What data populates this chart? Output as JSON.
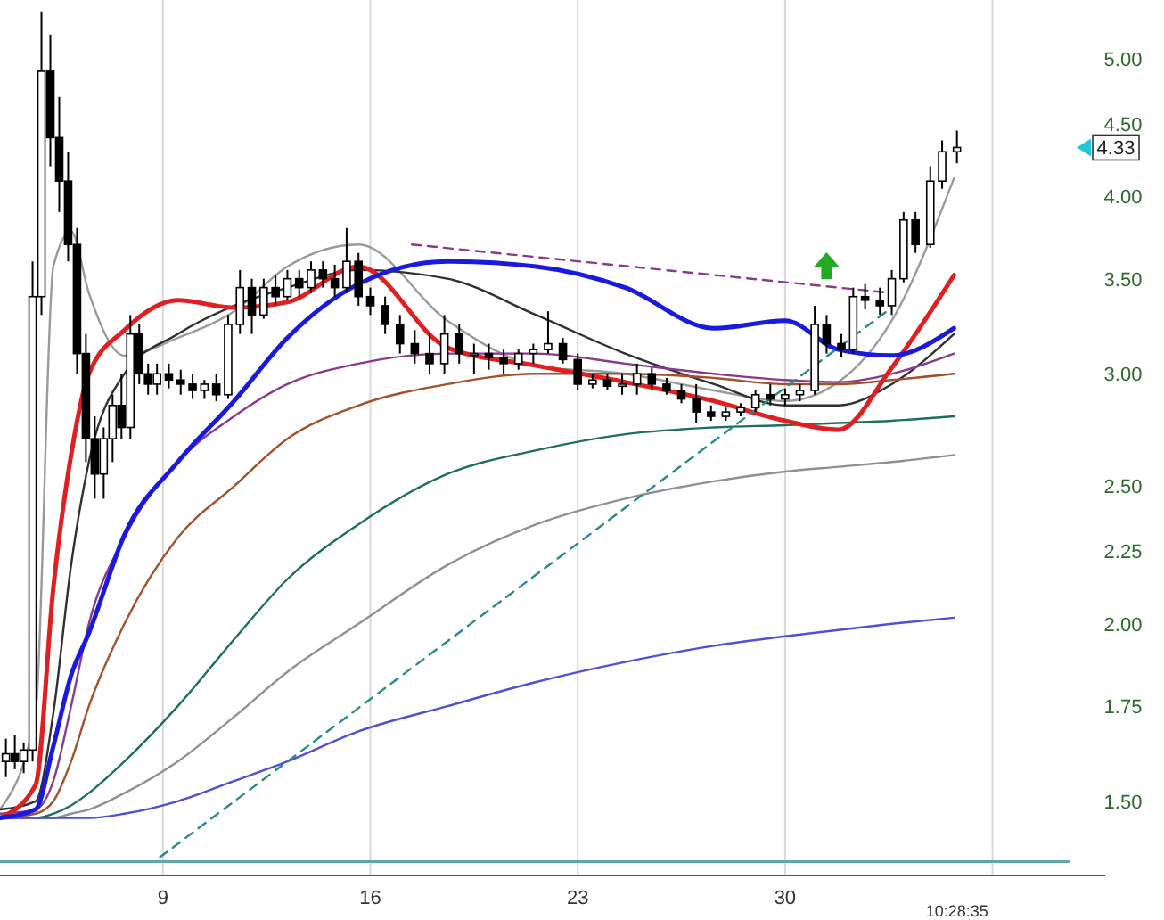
{
  "chart_data": {
    "type": "candlestick",
    "log": true,
    "grid": "x",
    "xlim": [
      3.5,
      39.6
    ],
    "xticks": [
      9,
      16,
      23,
      30,
      {
        "value": 37,
        "label": null
      }
    ],
    "ylim": [
      1.33,
      5.5
    ],
    "yticks": [
      {
        "value": 1.5,
        "label": "1.50"
      },
      {
        "value": 1.75,
        "label": "1.75"
      },
      {
        "value": 2,
        "label": "2.00"
      },
      {
        "value": 2.25,
        "label": "2.25"
      },
      {
        "value": 2.5,
        "label": "2.50"
      },
      {
        "value": 3,
        "label": "3.00"
      },
      {
        "value": 3.5,
        "label": "3.50"
      },
      {
        "value": 4,
        "label": "4.00"
      },
      {
        "value": 4.5,
        "label": "4.50"
      },
      {
        "value": 5,
        "label": "5.00"
      }
    ],
    "x": [
      3.7,
      4.0,
      4.3,
      4.6,
      4.9,
      5.2,
      5.5,
      5.8,
      6.1,
      6.4,
      6.7,
      7.0,
      7.3,
      7.6,
      7.9,
      8.2,
      8.5,
      8.8,
      9.2,
      9.6,
      10.0,
      10.4,
      10.8,
      11.2,
      11.6,
      12.0,
      12.4,
      12.8,
      13.2,
      13.6,
      14.0,
      14.4,
      14.8,
      15.2,
      15.6,
      16.0,
      16.5,
      17.0,
      17.5,
      18.0,
      18.5,
      19.0,
      19.5,
      20.0,
      20.5,
      21.0,
      21.5,
      22.0,
      22.5,
      23.0,
      23.5,
      24.0,
      24.5,
      25.0,
      25.5,
      26.0,
      26.5,
      27.0,
      27.5,
      28.0,
      28.5,
      29.0,
      29.5,
      30.0,
      30.5,
      31.0,
      31.4,
      31.9,
      32.3,
      32.7,
      33.2,
      33.6,
      34.0,
      34.4,
      34.9,
      35.3,
      35.8
    ],
    "ohlc": [
      [
        1.6,
        1.66,
        1.56,
        1.62
      ],
      [
        1.62,
        1.67,
        1.58,
        1.6
      ],
      [
        1.6,
        1.65,
        1.57,
        1.63
      ],
      [
        1.63,
        3.6,
        1.6,
        3.4
      ],
      [
        3.4,
        5.4,
        3.3,
        4.9
      ],
      [
        4.9,
        5.2,
        4.2,
        4.4
      ],
      [
        4.4,
        4.7,
        3.9,
        4.1
      ],
      [
        4.1,
        4.3,
        3.6,
        3.7
      ],
      [
        3.7,
        3.8,
        3.0,
        3.1
      ],
      [
        3.1,
        3.2,
        2.6,
        2.7
      ],
      [
        2.7,
        2.8,
        2.45,
        2.55
      ],
      [
        2.55,
        2.75,
        2.45,
        2.7
      ],
      [
        2.7,
        2.9,
        2.6,
        2.85
      ],
      [
        2.85,
        3.0,
        2.7,
        2.75
      ],
      [
        2.75,
        3.3,
        2.7,
        3.2
      ],
      [
        3.2,
        3.25,
        2.95,
        3.0
      ],
      [
        3.0,
        3.05,
        2.9,
        2.95
      ],
      [
        2.95,
        3.05,
        2.9,
        3.0
      ],
      [
        3.0,
        3.05,
        2.93,
        2.97
      ],
      [
        2.97,
        3.02,
        2.9,
        2.95
      ],
      [
        2.95,
        3.0,
        2.88,
        2.92
      ],
      [
        2.92,
        2.97,
        2.88,
        2.95
      ],
      [
        2.95,
        3.0,
        2.87,
        2.9
      ],
      [
        2.9,
        3.3,
        2.88,
        3.25
      ],
      [
        3.25,
        3.55,
        3.2,
        3.45
      ],
      [
        3.45,
        3.5,
        3.2,
        3.3
      ],
      [
        3.3,
        3.5,
        3.28,
        3.45
      ],
      [
        3.45,
        3.52,
        3.35,
        3.4
      ],
      [
        3.4,
        3.55,
        3.38,
        3.5
      ],
      [
        3.5,
        3.55,
        3.4,
        3.45
      ],
      [
        3.45,
        3.6,
        3.42,
        3.55
      ],
      [
        3.55,
        3.6,
        3.45,
        3.5
      ],
      [
        3.5,
        3.58,
        3.4,
        3.45
      ],
      [
        3.45,
        3.8,
        3.42,
        3.6
      ],
      [
        3.6,
        3.65,
        3.35,
        3.4
      ],
      [
        3.4,
        3.45,
        3.3,
        3.35
      ],
      [
        3.35,
        3.4,
        3.2,
        3.25
      ],
      [
        3.25,
        3.3,
        3.1,
        3.15
      ],
      [
        3.15,
        3.22,
        3.05,
        3.1
      ],
      [
        3.1,
        3.2,
        3.0,
        3.05
      ],
      [
        3.05,
        3.3,
        3.0,
        3.2
      ],
      [
        3.2,
        3.25,
        3.05,
        3.1
      ],
      [
        3.1,
        3.15,
        3.0,
        3.1
      ],
      [
        3.1,
        3.15,
        3.02,
        3.08
      ],
      [
        3.08,
        3.12,
        3.0,
        3.05
      ],
      [
        3.05,
        3.12,
        3.02,
        3.1
      ],
      [
        3.1,
        3.15,
        3.05,
        3.12
      ],
      [
        3.12,
        3.32,
        3.1,
        3.15
      ],
      [
        3.15,
        3.18,
        3.05,
        3.07
      ],
      [
        3.07,
        3.1,
        2.92,
        2.95
      ],
      [
        2.95,
        3.0,
        2.93,
        2.97
      ],
      [
        2.97,
        3.0,
        2.92,
        2.94
      ],
      [
        2.94,
        3.0,
        2.9,
        2.95
      ],
      [
        2.95,
        3.05,
        2.9,
        3.0
      ],
      [
        3.0,
        3.03,
        2.93,
        2.95
      ],
      [
        2.95,
        2.98,
        2.9,
        2.92
      ],
      [
        2.92,
        2.95,
        2.86,
        2.88
      ],
      [
        2.88,
        2.95,
        2.77,
        2.82
      ],
      [
        2.82,
        2.85,
        2.78,
        2.8
      ],
      [
        2.8,
        2.84,
        2.78,
        2.82
      ],
      [
        2.82,
        2.86,
        2.8,
        2.84
      ],
      [
        2.84,
        2.92,
        2.82,
        2.9
      ],
      [
        2.9,
        2.95,
        2.85,
        2.88
      ],
      [
        2.88,
        2.93,
        2.85,
        2.9
      ],
      [
        2.9,
        2.95,
        2.87,
        2.92
      ],
      [
        2.92,
        3.35,
        2.9,
        3.25
      ],
      [
        3.25,
        3.3,
        3.1,
        3.15
      ],
      [
        3.15,
        3.2,
        3.08,
        3.12
      ],
      [
        3.12,
        3.45,
        3.1,
        3.4
      ],
      [
        3.4,
        3.47,
        3.33,
        3.38
      ],
      [
        3.38,
        3.45,
        3.3,
        3.35
      ],
      [
        3.35,
        3.55,
        3.3,
        3.5
      ],
      [
        3.5,
        3.9,
        3.48,
        3.85
      ],
      [
        3.85,
        3.9,
        3.65,
        3.7
      ],
      [
        3.7,
        4.2,
        3.68,
        4.1
      ],
      [
        4.1,
        4.38,
        4.05,
        4.3
      ],
      [
        4.3,
        4.45,
        4.22,
        4.33
      ]
    ],
    "series": [
      {
        "type": "line",
        "color": "#9a9a9a",
        "x": [
          3.5,
          4.7,
          5.3,
          5.9,
          6.5,
          7.7,
          9.5,
          11.4,
          13.2,
          15.6,
          18.6,
          21.6,
          24.6,
          27.6,
          30,
          31.8,
          33.6,
          35.7
        ],
        "values": [
          1.48,
          1.73,
          3.57,
          3.78,
          3.42,
          3.09,
          3.18,
          3.32,
          3.57,
          3.7,
          3.27,
          3.04,
          3.0,
          2.92,
          2.87,
          2.96,
          3.27,
          4.12
        ]
      },
      {
        "type": "line",
        "color": "#303030",
        "x": [
          3.5,
          4.7,
          5.3,
          5.9,
          6.5,
          7.7,
          9.5,
          11.4,
          13.2,
          15.6,
          18.6,
          21.6,
          24.6,
          27.6,
          30,
          31.8,
          33.6,
          35.7
        ],
        "values": [
          1.48,
          1.5,
          1.73,
          2.2,
          2.6,
          3.0,
          3.2,
          3.35,
          3.45,
          3.55,
          3.5,
          3.3,
          3.1,
          2.95,
          2.85,
          2.85,
          2.95,
          3.2
        ]
      },
      {
        "type": "line",
        "color": "#8b3a8b",
        "x": [
          3.5,
          4.7,
          5.3,
          5.9,
          6.5,
          7.7,
          9.5,
          11.4,
          13.2,
          15.6,
          18.6,
          21.6,
          24.6,
          27.6,
          30,
          31.8,
          33.6,
          35.7
        ],
        "values": [
          1.47,
          1.48,
          1.55,
          1.75,
          2.0,
          2.3,
          2.6,
          2.8,
          2.95,
          3.05,
          3.1,
          3.1,
          3.05,
          3.0,
          2.97,
          2.96,
          3.0,
          3.1
        ]
      },
      {
        "type": "line",
        "color": "#a0522d",
        "x": [
          3.5,
          4.7,
          5.3,
          5.9,
          6.5,
          7.7,
          9.5,
          11.4,
          13.2,
          15.6,
          18.6,
          21.6,
          24.6,
          27.6,
          30,
          31.8,
          33.6,
          35.7
        ],
        "values": [
          1.46,
          1.47,
          1.5,
          1.6,
          1.75,
          2.0,
          2.3,
          2.5,
          2.7,
          2.85,
          2.95,
          3.0,
          3.0,
          2.98,
          2.95,
          2.95,
          2.97,
          3.0
        ]
      },
      {
        "type": "line",
        "color": "#1f6f5f",
        "x": [
          3.5,
          4.7,
          5.3,
          5.9,
          6.5,
          7.7,
          9.5,
          11.4,
          13.2,
          15.6,
          18.6,
          21.6,
          24.6,
          27.6,
          30,
          31.8,
          33.6,
          35.7
        ],
        "values": [
          1.46,
          1.46,
          1.47,
          1.49,
          1.52,
          1.6,
          1.75,
          1.95,
          2.15,
          2.35,
          2.55,
          2.65,
          2.72,
          2.75,
          2.76,
          2.77,
          2.78,
          2.8
        ]
      },
      {
        "type": "line",
        "color": "#909090",
        "x": [
          3.5,
          4.7,
          5.3,
          5.9,
          6.5,
          7.7,
          9.5,
          11.4,
          13.2,
          15.6,
          18.6,
          21.6,
          24.6,
          27.6,
          30,
          31.8,
          33.6,
          35.7
        ],
        "values": [
          1.46,
          1.46,
          1.46,
          1.47,
          1.48,
          1.52,
          1.6,
          1.72,
          1.85,
          2.0,
          2.2,
          2.35,
          2.45,
          2.52,
          2.56,
          2.58,
          2.6,
          2.63
        ]
      },
      {
        "type": "line",
        "color": "#5050d0",
        "x": [
          3.5,
          4.7,
          5.3,
          5.9,
          6.5,
          7.7,
          9.5,
          11.4,
          13.2,
          15.6,
          18.6,
          21.6,
          24.6,
          27.6,
          30,
          31.8,
          33.6,
          35.7
        ],
        "values": [
          1.46,
          1.46,
          1.46,
          1.46,
          1.46,
          1.47,
          1.5,
          1.55,
          1.6,
          1.68,
          1.75,
          1.82,
          1.88,
          1.93,
          1.96,
          1.98,
          2.0,
          2.02
        ]
      },
      {
        "type": "line",
        "color": "#e02020",
        "x": [
          3.5,
          4.7,
          5.3,
          5.9,
          6.5,
          7.7,
          9.5,
          11.4,
          13.2,
          15.6,
          18.6,
          21.6,
          24.6,
          27.6,
          30,
          31.8,
          33.6,
          35.7
        ],
        "values": [
          1.46,
          1.54,
          2.12,
          2.63,
          3.0,
          3.22,
          3.38,
          3.34,
          3.37,
          3.57,
          3.13,
          3.04,
          2.96,
          2.87,
          2.78,
          2.74,
          3.03,
          3.52
        ]
      },
      {
        "type": "line",
        "color": "#1a1adf",
        "x": [
          3.5,
          4.7,
          5.3,
          5.9,
          6.5,
          7.7,
          9.5,
          11.4,
          13.2,
          15.6,
          18.6,
          21.6,
          24.6,
          27.6,
          30,
          31.8,
          33.6,
          35.7
        ],
        "values": [
          1.46,
          1.48,
          1.64,
          1.84,
          1.97,
          2.31,
          2.6,
          2.87,
          3.18,
          3.47,
          3.6,
          3.57,
          3.45,
          3.23,
          3.27,
          3.12,
          3.09,
          3.23
        ]
      },
      {
        "type": "line",
        "color": "#2a8a8a",
        "line_style": "dashed",
        "x": [
          8.9,
          33.6
        ],
        "values": [
          1.37,
          3.34
        ]
      },
      {
        "type": "line",
        "color": "#8b3a8b",
        "line_style": "dashed",
        "x": [
          17.4,
          33.6
        ],
        "values": [
          3.7,
          3.42
        ]
      }
    ],
    "ref_lines": [
      {
        "axis": "y",
        "value": 1.36,
        "color": "#5fa8a8"
      }
    ],
    "annotations": [
      "10:28:35",
      "4.33"
    ]
  }
}
